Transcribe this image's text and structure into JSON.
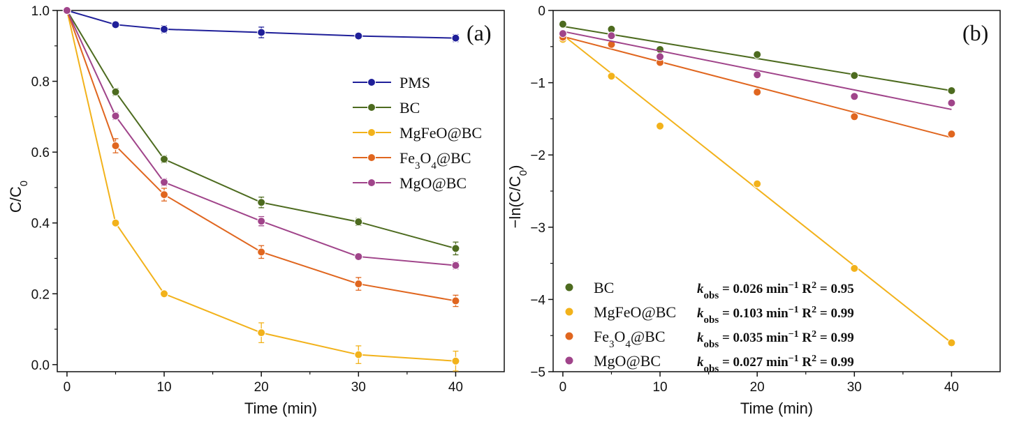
{
  "chart_data": [
    {
      "panel": "(a)",
      "type": "line",
      "xlabel": "Time (min)",
      "ylabel": "C/C",
      "ylabel_sub": "0",
      "xlim": [
        -1,
        45
      ],
      "ylim": [
        -0.02,
        1.0
      ],
      "xticks": [
        0,
        10,
        20,
        30,
        40
      ],
      "yticks": [
        0.0,
        0.2,
        0.4,
        0.6,
        0.8,
        1.0
      ],
      "ytick_labels": [
        "0.0",
        "0.2",
        "0.4",
        "0.6",
        "0.8",
        "1.0"
      ],
      "legend_position": "center-right",
      "x": [
        0,
        5,
        10,
        20,
        30,
        40
      ],
      "series": [
        {
          "name": "PMS",
          "color": "#1f1f99",
          "values": [
            1.0,
            0.96,
            0.947,
            0.938,
            0.928,
            0.922
          ],
          "errors": [
            0,
            0.008,
            0.01,
            0.015,
            0.008,
            0.01
          ]
        },
        {
          "name": "BC",
          "color": "#4d6b1f",
          "values": [
            1.0,
            0.77,
            0.58,
            0.458,
            0.403,
            0.328
          ],
          "errors": [
            0,
            0.01,
            0.01,
            0.015,
            0.01,
            0.018
          ]
        },
        {
          "name": "MgFeO@BC",
          "color": "#f2b21b",
          "values": [
            1.0,
            0.4,
            0.2,
            0.09,
            0.028,
            0.01
          ],
          "errors": [
            0,
            0.008,
            0.008,
            0.028,
            0.025,
            0.028
          ]
        },
        {
          "name": "Fe₃O₄@BC",
          "name_parts": [
            "Fe",
            "3",
            "O",
            "4",
            "@BC"
          ],
          "color": "#e0661f",
          "values": [
            1.0,
            0.618,
            0.48,
            0.318,
            0.228,
            0.18
          ],
          "errors": [
            0,
            0.02,
            0.018,
            0.018,
            0.018,
            0.016
          ]
        },
        {
          "name": "MgO@BC",
          "color": "#a0448a",
          "values": [
            1.0,
            0.702,
            0.515,
            0.405,
            0.305,
            0.28
          ],
          "errors": [
            0,
            0.01,
            0.01,
            0.013,
            0.008,
            0.01
          ]
        }
      ]
    },
    {
      "panel": "(b)",
      "type": "scatter",
      "xlabel": "Time (min)",
      "ylabel": "−ln(C/C",
      "ylabel_sub": "0",
      "ylabel_end": ")",
      "xlim": [
        -1,
        45
      ],
      "ylim": [
        -5,
        0
      ],
      "xticks": [
        0,
        10,
        20,
        30,
        40
      ],
      "yticks": [
        0,
        -1,
        -2,
        -3,
        -4,
        -5
      ],
      "ytick_labels": [
        "0",
        "−1",
        "−2",
        "−3",
        "−4",
        "−5"
      ],
      "legend_position": "bottom-left",
      "x": [
        0,
        5,
        10,
        20,
        30,
        40
      ],
      "series": [
        {
          "name": "BC",
          "color": "#4d6b1f",
          "values": [
            -0.19,
            -0.26,
            -0.54,
            -0.61,
            -0.9,
            -1.11
          ],
          "fit": [
            -0.22,
            -1.11
          ],
          "k": "0.026",
          "r2": "0.95"
        },
        {
          "name": "MgFeO@BC",
          "color": "#f2b21b",
          "values": [
            -0.4,
            -0.91,
            -1.6,
            -2.4,
            -3.57,
            -4.6
          ],
          "fit": [
            -0.34,
            -4.6
          ],
          "k": "0.103",
          "r2": "0.99"
        },
        {
          "name": "Fe₃O₄@BC",
          "name_parts": [
            "Fe",
            "3",
            "O",
            "4",
            "@BC"
          ],
          "color": "#e0661f",
          "values": [
            -0.37,
            -0.47,
            -0.72,
            -1.13,
            -1.47,
            -1.71
          ],
          "fit": [
            -0.36,
            -1.76
          ],
          "k": "0.035",
          "r2": "0.99"
        },
        {
          "name": "MgO@BC",
          "color": "#a0448a",
          "values": [
            -0.32,
            -0.35,
            -0.64,
            -0.89,
            -1.19,
            -1.28
          ],
          "fit": [
            -0.29,
            -1.37
          ],
          "k": "0.027",
          "r2": "0.99"
        }
      ],
      "stat_labels": {
        "k": "k",
        "k_sub": "obs",
        "eq": "=",
        "unit": "min",
        "unit_sup": "−1",
        "r": "R",
        "r_sup": "2",
        "r_eq": "="
      }
    }
  ]
}
